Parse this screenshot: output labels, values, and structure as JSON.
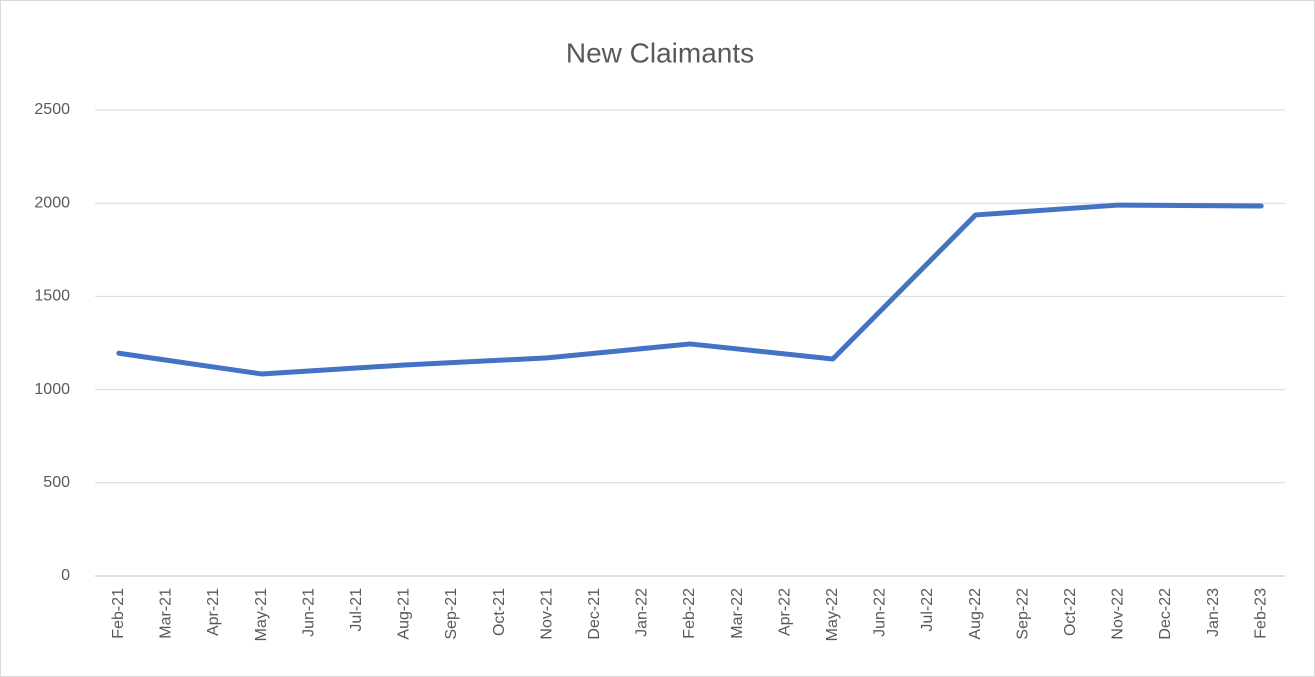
{
  "chart_data": {
    "type": "line",
    "title": "New Claimants",
    "x": [
      "Feb-21",
      "May-21",
      "Aug-21",
      "Nov-21",
      "Feb-22",
      "May-22",
      "Aug-22",
      "Nov-22",
      "Feb-23"
    ],
    "xticks": [
      "Feb-21",
      "Mar-21",
      "Apr-21",
      "May-21",
      "Jun-21",
      "Jul-21",
      "Aug-21",
      "Sep-21",
      "Oct-21",
      "Nov-21",
      "Dec-21",
      "Jan-22",
      "Feb-22",
      "Mar-22",
      "Apr-22",
      "May-22",
      "Jun-22",
      "Jul-22",
      "Aug-22",
      "Sep-22",
      "Oct-22",
      "Nov-22",
      "Dec-22",
      "Jan-23",
      "Feb-23"
    ],
    "series": [
      {
        "color": "#4472c4",
        "values": [
          1195,
          1084,
          1132,
          1170,
          1245,
          1164,
          1937,
          1990,
          1985
        ]
      }
    ],
    "ylim": [
      0,
      2500
    ],
    "yticks": [
      0,
      500,
      1000,
      1500,
      2000,
      2500
    ],
    "grid": true
  }
}
